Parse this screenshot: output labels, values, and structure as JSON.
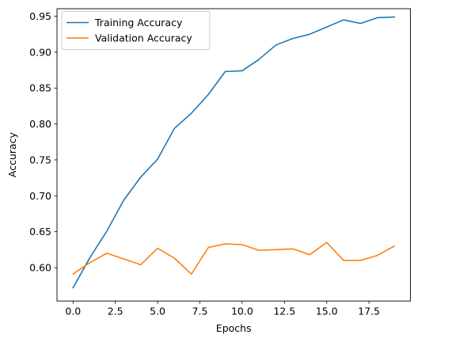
{
  "chart_data": {
    "type": "line",
    "title": "",
    "xlabel": "Epochs",
    "ylabel": "Accuracy",
    "xlim": [
      -0.95,
      19.95
    ],
    "ylim": [
      0.5535,
      0.9605
    ],
    "grid": false,
    "legend_position": "top-left",
    "x_ticks": [
      0.0,
      2.5,
      5.0,
      7.5,
      10.0,
      12.5,
      15.0,
      17.5
    ],
    "x_tick_labels": [
      "0.0",
      "2.5",
      "5.0",
      "7.5",
      "10.0",
      "12.5",
      "15.0",
      "17.5"
    ],
    "y_ticks": [
      0.6,
      0.65,
      0.7,
      0.75,
      0.8,
      0.85,
      0.9,
      0.95
    ],
    "y_tick_labels": [
      "0.60",
      "0.65",
      "0.70",
      "0.75",
      "0.80",
      "0.85",
      "0.90",
      "0.95"
    ],
    "x": [
      0,
      1,
      2,
      3,
      4,
      5,
      6,
      7,
      8,
      9,
      10,
      11,
      12,
      13,
      14,
      15,
      16,
      17,
      18,
      19
    ],
    "series": [
      {
        "name": "Training Accuracy",
        "color": "#1f77b4",
        "values": [
          0.572,
          0.614,
          0.651,
          0.694,
          0.726,
          0.751,
          0.794,
          0.815,
          0.841,
          0.873,
          0.874,
          0.89,
          0.91,
          0.919,
          0.925,
          0.935,
          0.945,
          0.94,
          0.948,
          0.949
        ]
      },
      {
        "name": "Validation Accuracy",
        "color": "#ff7f0e",
        "values": [
          0.591,
          0.607,
          0.62,
          0.612,
          0.604,
          0.627,
          0.613,
          0.591,
          0.628,
          0.633,
          0.632,
          0.624,
          0.625,
          0.626,
          0.618,
          0.635,
          0.61,
          0.61,
          0.617,
          0.63
        ]
      }
    ]
  }
}
